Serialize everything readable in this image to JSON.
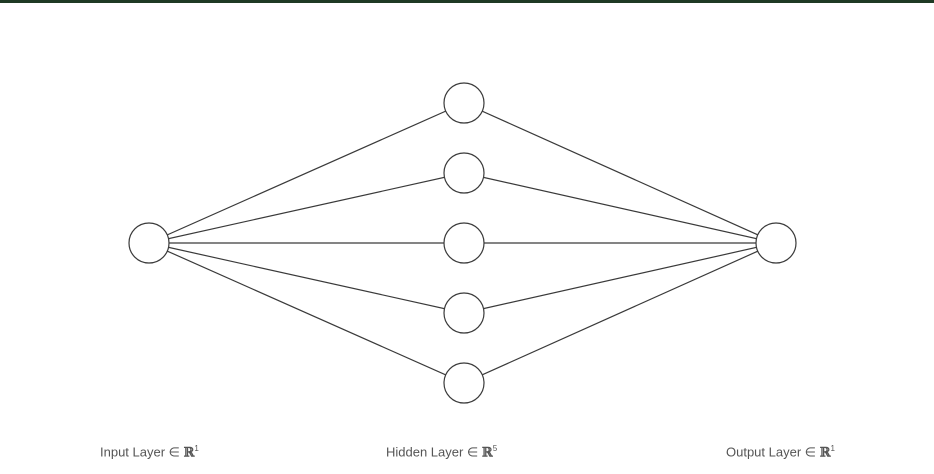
{
  "layers": [
    {
      "id": "input",
      "label": "Input Layer ∈ ",
      "set": "ℝ",
      "dim": "1",
      "nodes": 1
    },
    {
      "id": "hidden",
      "label": "Hidden Layer ∈ ",
      "set": "ℝ",
      "dim": "5",
      "nodes": 5
    },
    {
      "id": "output",
      "label": "Output Layer ∈ ",
      "set": "ℝ",
      "dim": "1",
      "nodes": 1
    }
  ],
  "colors": {
    "stroke": "#3a3a3a",
    "node_fill": "#ffffff",
    "frame_border": "#1f3a24",
    "label_text": "#555555"
  }
}
